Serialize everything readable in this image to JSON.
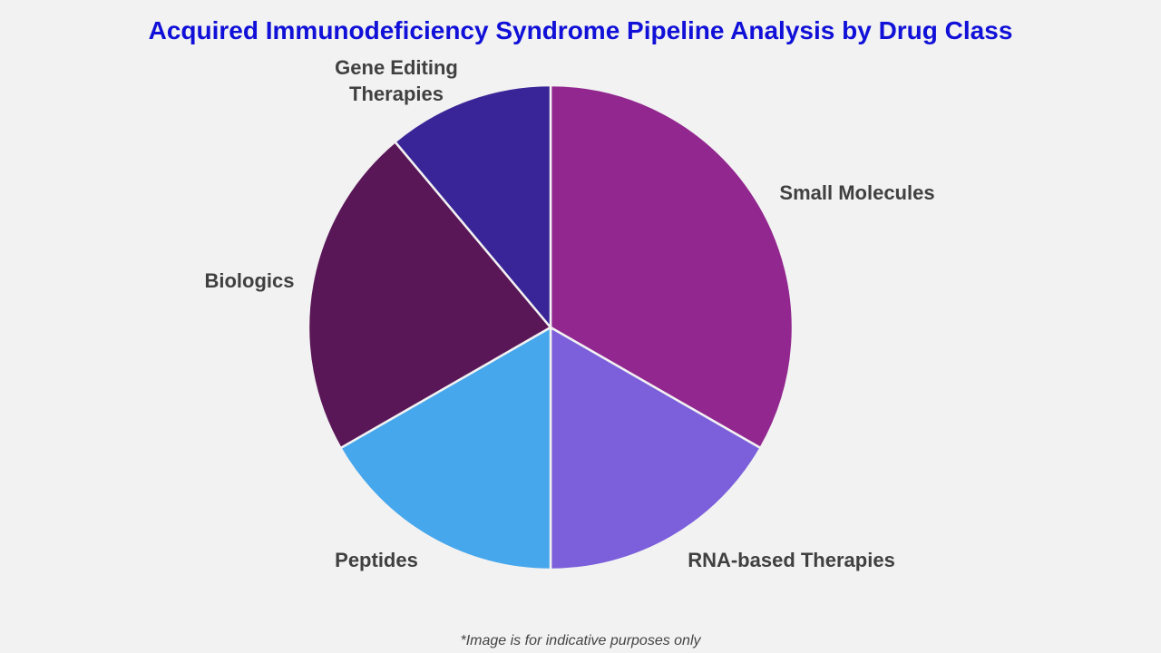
{
  "chart_data": {
    "type": "pie",
    "title": "Acquired Immunodeficiency Syndrome Pipeline Analysis by Drug Class",
    "unit": "percent share (estimated)",
    "slices": [
      {
        "label": "Small Molecules",
        "value": 33.3,
        "color": "#92278f"
      },
      {
        "label": "RNA-based Therapies",
        "value": 16.7,
        "color": "#7b5fdb"
      },
      {
        "label": "Peptides",
        "value": 16.7,
        "color": "#47a7ec"
      },
      {
        "label": "Biologics",
        "value": 22.2,
        "color": "#5a1758"
      },
      {
        "label": "Gene Editing\nTherapies",
        "value": 11.1,
        "color": "#3a2598"
      }
    ],
    "start_angle": "12 o'clock, clockwise",
    "legend": "none (direct labels)"
  },
  "footnote": "*Image is for indicative purposes only"
}
